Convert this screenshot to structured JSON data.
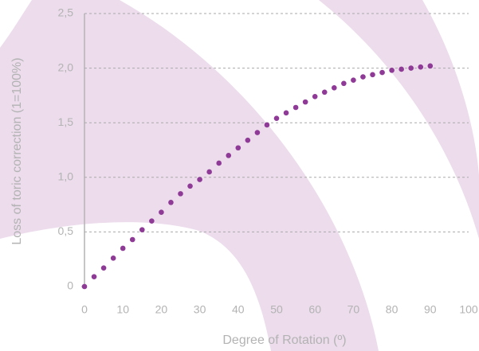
{
  "chart_data": {
    "type": "scatter",
    "x_label": "Degree of Rotation (º)",
    "y_label": "Loss of toric correction (1=100%)",
    "x": [
      0,
      2.5,
      5,
      7.5,
      10,
      12.5,
      15,
      17.5,
      20,
      22.5,
      25,
      27.5,
      30,
      32.5,
      35,
      37.5,
      40,
      42.5,
      45,
      47.5,
      50,
      52.5,
      55,
      57.5,
      60,
      62.5,
      65,
      67.5,
      70,
      72.5,
      75,
      77.5,
      80,
      82.5,
      85,
      87.5,
      90
    ],
    "values": [
      0,
      0.09,
      0.17,
      0.26,
      0.35,
      0.43,
      0.52,
      0.6,
      0.68,
      0.77,
      0.85,
      0.92,
      0.98,
      1.05,
      1.13,
      1.2,
      1.27,
      1.34,
      1.41,
      1.48,
      1.54,
      1.59,
      1.64,
      1.69,
      1.74,
      1.78,
      1.82,
      1.86,
      1.89,
      1.92,
      1.94,
      1.96,
      1.98,
      1.99,
      2.0,
      2.01,
      2.02
    ],
    "color": "#8e3a96",
    "xlim": [
      0,
      100
    ],
    "xticks": [
      0,
      10,
      20,
      30,
      40,
      50,
      60,
      70,
      80,
      90,
      100
    ],
    "ylim": [
      0,
      2.5
    ],
    "yticks": [
      0,
      {
        "value": 0.5,
        "label": "0,5"
      },
      {
        "value": 1.0,
        "label": "1,0"
      },
      {
        "value": 1.5,
        "label": "1,5"
      },
      {
        "value": 2.0,
        "label": "2,0"
      },
      {
        "value": 2.5,
        "label": "2,5"
      }
    ],
    "grid": true
  }
}
